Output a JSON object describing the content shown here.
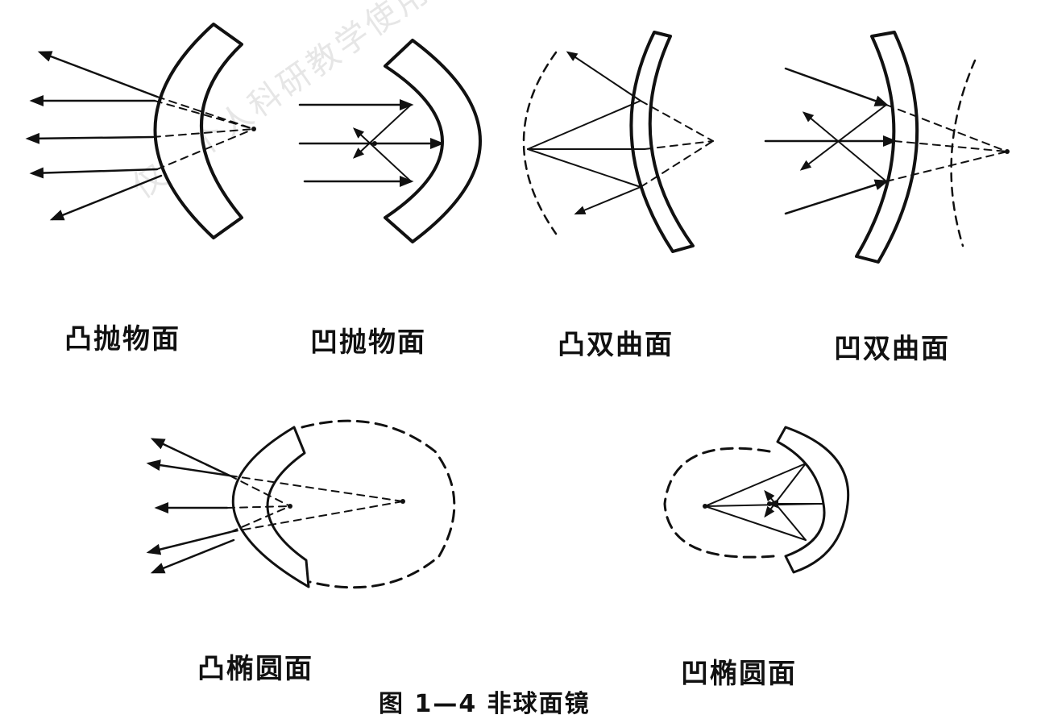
{
  "watermark": "仅供个人科研教学使用！",
  "labels": {
    "convex_parabolic": "凸抛物面",
    "concave_parabolic": "凹抛物面",
    "convex_hyperbolic": "凸双曲面",
    "concave_hyperbolic": "凹双曲面",
    "convex_ellipsoidal": "凸椭圆面",
    "concave_ellipsoidal": "凹椭圆面"
  },
  "caption": "图 1—4 非球面镜",
  "colors": {
    "ink": "#111111",
    "watermark": "#e6e6e6",
    "background": "#ffffff"
  }
}
